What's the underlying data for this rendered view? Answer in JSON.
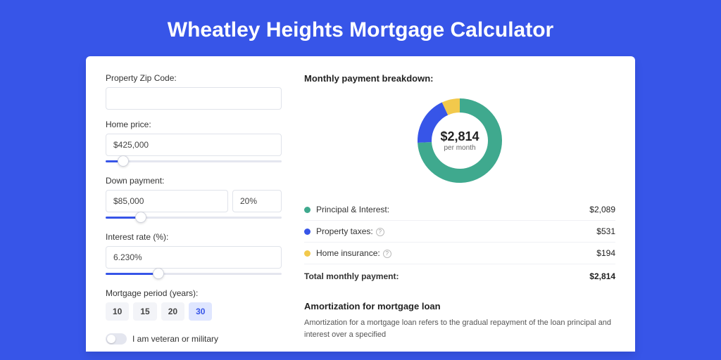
{
  "page": {
    "title": "Wheatley Heights Mortgage Calculator",
    "bg_color": "#3755e8"
  },
  "form": {
    "zip_label": "Property Zip Code:",
    "zip_value": "",
    "home_price_label": "Home price:",
    "home_price_value": "$425,000",
    "home_price_slider_pct": 10,
    "down_payment_label": "Down payment:",
    "down_payment_value": "$85,000",
    "down_payment_pct_value": "20%",
    "down_payment_slider_pct": 20,
    "interest_label": "Interest rate (%):",
    "interest_value": "6.230%",
    "interest_slider_pct": 30,
    "period_label": "Mortgage period (years):",
    "period_options": [
      "10",
      "15",
      "20",
      "30"
    ],
    "period_selected": "30",
    "veteran_label": "I am veteran or military",
    "veteran_on": false
  },
  "breakdown": {
    "title": "Monthly payment breakdown:",
    "total_amount": "$2,814",
    "total_sub": "per month",
    "slices": [
      {
        "label": "Principal & Interest:",
        "value": "$2,089",
        "color": "#3fa98e",
        "pct": 74.2,
        "has_help": false
      },
      {
        "label": "Property taxes:",
        "value": "$531",
        "color": "#3755e8",
        "pct": 18.9,
        "has_help": true
      },
      {
        "label": "Home insurance:",
        "value": "$194",
        "color": "#f2c94c",
        "pct": 6.9,
        "has_help": true
      }
    ],
    "total_row": {
      "label": "Total monthly payment:",
      "value": "$2,814"
    },
    "donut": {
      "size": 130,
      "thickness": 20
    }
  },
  "amortization": {
    "title": "Amortization for mortgage loan",
    "text": "Amortization for a mortgage loan refers to the gradual repayment of the loan principal and interest over a specified"
  }
}
